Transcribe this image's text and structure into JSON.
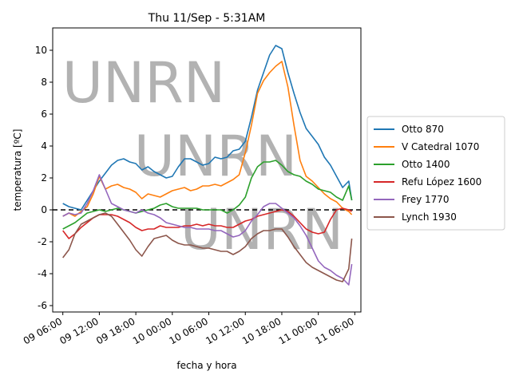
{
  "chart_data": {
    "type": "line",
    "title": "Thu 11/Sep - 5:31AM",
    "xlabel": "fecha y hora",
    "ylabel": "temperatura [ºC]",
    "xlim": [
      "2025-09-09 04:20",
      "2025-09-11 07:00"
    ],
    "ylim": [
      -6.4,
      11.4
    ],
    "yticks": [
      -6,
      -4,
      -2,
      0,
      2,
      4,
      6,
      8,
      10
    ],
    "xticks": [
      {
        "x": "2025-09-09 06:00",
        "label": "09 06:00"
      },
      {
        "x": "2025-09-09 12:00",
        "label": "09 12:00"
      },
      {
        "x": "2025-09-09 18:00",
        "label": "09 18:00"
      },
      {
        "x": "2025-09-10 00:00",
        "label": "10 00:00"
      },
      {
        "x": "2025-09-10 06:00",
        "label": "10 06:00"
      },
      {
        "x": "2025-09-10 12:00",
        "label": "10 12:00"
      },
      {
        "x": "2025-09-10 18:00",
        "label": "10 18:00"
      },
      {
        "x": "2025-09-11 00:00",
        "label": "11 00:00"
      },
      {
        "x": "2025-09-11 06:00",
        "label": "11 06:00"
      }
    ],
    "reference_line": {
      "y": 0,
      "style": "dashed",
      "color": "#000000"
    },
    "grid": false,
    "legend_position": "right",
    "watermark": "UNRN",
    "x": [
      "2025-09-09 06:00",
      "2025-09-09 07:00",
      "2025-09-09 08:00",
      "2025-09-09 09:00",
      "2025-09-09 10:00",
      "2025-09-09 11:00",
      "2025-09-09 12:00",
      "2025-09-09 13:00",
      "2025-09-09 14:00",
      "2025-09-09 15:00",
      "2025-09-09 16:00",
      "2025-09-09 17:00",
      "2025-09-09 18:00",
      "2025-09-09 19:00",
      "2025-09-09 20:00",
      "2025-09-09 21:00",
      "2025-09-09 22:00",
      "2025-09-09 23:00",
      "2025-09-10 00:00",
      "2025-09-10 01:00",
      "2025-09-10 02:00",
      "2025-09-10 03:00",
      "2025-09-10 04:00",
      "2025-09-10 05:00",
      "2025-09-10 06:00",
      "2025-09-10 07:00",
      "2025-09-10 08:00",
      "2025-09-10 09:00",
      "2025-09-10 10:00",
      "2025-09-10 11:00",
      "2025-09-10 12:00",
      "2025-09-10 13:00",
      "2025-09-10 14:00",
      "2025-09-10 15:00",
      "2025-09-10 16:00",
      "2025-09-10 17:00",
      "2025-09-10 18:00",
      "2025-09-10 19:00",
      "2025-09-10 20:00",
      "2025-09-10 21:00",
      "2025-09-10 22:00",
      "2025-09-10 23:00",
      "2025-09-11 00:00",
      "2025-09-11 01:00",
      "2025-09-11 02:00",
      "2025-09-11 03:00",
      "2025-09-11 04:00",
      "2025-09-11 05:00",
      "2025-09-11 05:30"
    ],
    "series": [
      {
        "name": "Otto 870",
        "color": "#1f77b4",
        "values": [
          0.4,
          0.2,
          0.1,
          0.0,
          0.6,
          1.2,
          1.8,
          2.3,
          2.8,
          3.1,
          3.2,
          3.0,
          2.9,
          2.5,
          2.7,
          2.4,
          2.2,
          2.0,
          2.1,
          2.7,
          3.2,
          3.2,
          3.0,
          2.8,
          2.9,
          3.3,
          3.2,
          3.3,
          3.7,
          3.8,
          4.3,
          5.8,
          7.5,
          8.6,
          9.7,
          10.3,
          10.1,
          8.6,
          7.3,
          6.1,
          5.1,
          4.6,
          4.1,
          3.3,
          2.8,
          2.1,
          1.4,
          1.8,
          0.6
        ]
      },
      {
        "name": "V Catedral 1070",
        "color": "#ff7f0e",
        "values": [
          -0.4,
          -0.2,
          -0.4,
          -0.1,
          0.2,
          1.0,
          2.1,
          1.3,
          1.5,
          1.6,
          1.4,
          1.3,
          1.1,
          0.7,
          1.0,
          0.9,
          0.8,
          1.0,
          1.2,
          1.3,
          1.4,
          1.2,
          1.3,
          1.5,
          1.5,
          1.6,
          1.5,
          1.7,
          1.9,
          2.2,
          3.6,
          5.3,
          7.3,
          8.1,
          8.6,
          9.0,
          9.3,
          7.7,
          5.3,
          3.1,
          2.1,
          1.8,
          1.4,
          1.0,
          0.7,
          0.5,
          0.1,
          -0.1,
          -0.3
        ]
      },
      {
        "name": "Otto 1400",
        "color": "#2ca02c",
        "values": [
          -1.2,
          -1.0,
          -0.8,
          -0.5,
          -0.2,
          -0.1,
          0.0,
          -0.1,
          0.0,
          0.1,
          0.0,
          -0.1,
          -0.2,
          -0.1,
          0.0,
          0.1,
          0.3,
          0.4,
          0.2,
          0.1,
          0.1,
          0.1,
          0.1,
          0.0,
          0.0,
          0.0,
          0.0,
          -0.2,
          0.0,
          0.3,
          0.8,
          2.0,
          2.7,
          3.0,
          3.0,
          3.1,
          2.8,
          2.4,
          2.2,
          2.1,
          1.8,
          1.6,
          1.3,
          1.2,
          1.1,
          0.8,
          0.6,
          1.5,
          0.6
        ]
      },
      {
        "name": "Refu López 1600",
        "color": "#d62728",
        "values": [
          -1.3,
          -1.8,
          -1.5,
          -1.1,
          -0.8,
          -0.5,
          -0.3,
          -0.3,
          -0.3,
          -0.4,
          -0.6,
          -0.8,
          -1.1,
          -1.3,
          -1.2,
          -1.2,
          -1.0,
          -1.1,
          -1.1,
          -1.1,
          -1.0,
          -1.0,
          -0.9,
          -1.0,
          -0.9,
          -1.0,
          -1.0,
          -1.1,
          -1.1,
          -0.9,
          -0.7,
          -0.6,
          -0.4,
          -0.3,
          -0.2,
          -0.1,
          0.0,
          -0.1,
          -0.4,
          -0.8,
          -1.2,
          -1.4,
          -1.5,
          -1.4,
          -0.6,
          0.0,
          0.1,
          0.0,
          -0.1
        ]
      },
      {
        "name": "Frey 1770",
        "color": "#9467bd",
        "values": [
          -0.4,
          -0.2,
          -0.3,
          -0.2,
          0.4,
          1.2,
          2.2,
          1.3,
          0.4,
          0.2,
          0.0,
          -0.1,
          -0.2,
          0.0,
          -0.2,
          -0.3,
          -0.5,
          -0.8,
          -0.9,
          -1.0,
          -1.1,
          -1.1,
          -1.2,
          -1.2,
          -1.2,
          -1.3,
          -1.3,
          -1.5,
          -1.7,
          -1.6,
          -1.3,
          -0.7,
          -0.3,
          0.2,
          0.4,
          0.4,
          0.1,
          -0.2,
          -0.5,
          -1.0,
          -1.6,
          -2.4,
          -3.2,
          -3.6,
          -3.8,
          -4.1,
          -4.3,
          -4.7,
          -3.4
        ]
      },
      {
        "name": "Lynch 1930",
        "color": "#8c564b",
        "values": [
          -3.0,
          -2.5,
          -1.5,
          -0.9,
          -0.7,
          -0.5,
          -0.3,
          -0.2,
          -0.4,
          -0.9,
          -1.4,
          -1.9,
          -2.5,
          -2.9,
          -2.3,
          -1.8,
          -1.7,
          -1.6,
          -1.9,
          -2.1,
          -2.2,
          -2.2,
          -2.3,
          -2.4,
          -2.4,
          -2.5,
          -2.6,
          -2.6,
          -2.8,
          -2.6,
          -2.3,
          -1.8,
          -1.5,
          -1.3,
          -1.3,
          -1.2,
          -1.2,
          -1.7,
          -2.3,
          -2.8,
          -3.3,
          -3.6,
          -3.8,
          -4.0,
          -4.2,
          -4.4,
          -4.5,
          -3.7,
          -1.8
        ]
      }
    ]
  }
}
